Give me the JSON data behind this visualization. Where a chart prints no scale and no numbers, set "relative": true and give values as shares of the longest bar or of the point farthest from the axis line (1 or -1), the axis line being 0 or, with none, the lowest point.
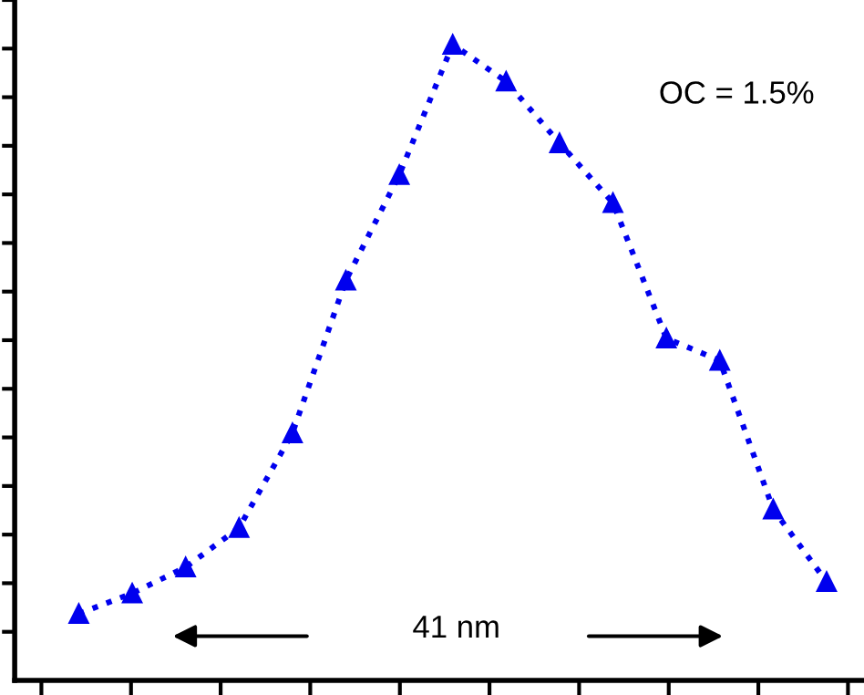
{
  "chart_data": {
    "type": "line",
    "relative": true,
    "categories": [
      null,
      null,
      null,
      null,
      null,
      null,
      null,
      null,
      null,
      null,
      null,
      null,
      null,
      null,
      null
    ],
    "series": [
      {
        "color": "#0000ee",
        "values": [
          0.105,
          0.137,
          0.178,
          0.24,
          0.389,
          0.629,
          0.795,
          1,
          0.942,
          0.845,
          0.751,
          0.538,
          0.503,
          0.269,
          0.155
        ]
      }
    ],
    "marker": "triangle",
    "line_style": "dotted",
    "grid": false,
    "legend": false,
    "annotations": [
      "OC = 1.5%",
      "41 nm"
    ]
  }
}
